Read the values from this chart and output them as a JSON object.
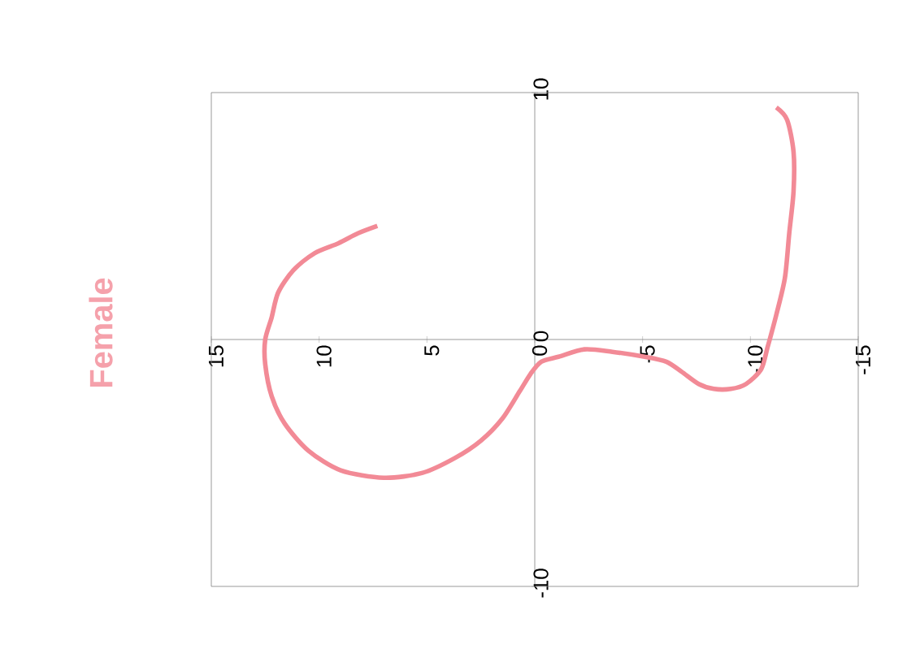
{
  "chart_data": {
    "type": "line",
    "title": "Female",
    "color": "#f28a96",
    "x": [
      7.3,
      8.2,
      9.1,
      10.2,
      11.2,
      11.9,
      12.2,
      12.5,
      12.5,
      12.2,
      11.6,
      10.5,
      9.0,
      7.0,
      5.2,
      3.7,
      2.5,
      1.5,
      0.7,
      0.2,
      -0.3,
      -1.1,
      -2.3,
      -3.6,
      -5.1,
      -6.1,
      -6.8,
      -7.6,
      -8.3,
      -9.1,
      -9.8,
      -10.5,
      -10.8,
      -11.2,
      -11.6,
      -11.8,
      -12.0,
      -12.0,
      -11.7,
      -11.2
    ],
    "values": [
      4.6,
      4.3,
      3.9,
      3.5,
      2.8,
      1.9,
      0.9,
      0,
      -1.0,
      -2.3,
      -3.4,
      -4.5,
      -5.3,
      -5.6,
      -5.4,
      -4.8,
      -4.1,
      -3.2,
      -2.1,
      -1.4,
      -0.9,
      -0.7,
      -0.4,
      -0.5,
      -0.7,
      -0.9,
      -1.3,
      -1.8,
      -2.0,
      -2.0,
      -1.8,
      -1.2,
      -0.3,
      1.0,
      2.5,
      4.3,
      6.0,
      7.6,
      8.9,
      9.4
    ],
    "xlim": [
      15,
      -15
    ],
    "xticks": [
      15,
      10,
      5,
      0,
      -5,
      -10,
      -15
    ],
    "ylim": [
      -10,
      10
    ],
    "yticks": [
      -10,
      0,
      10
    ]
  }
}
